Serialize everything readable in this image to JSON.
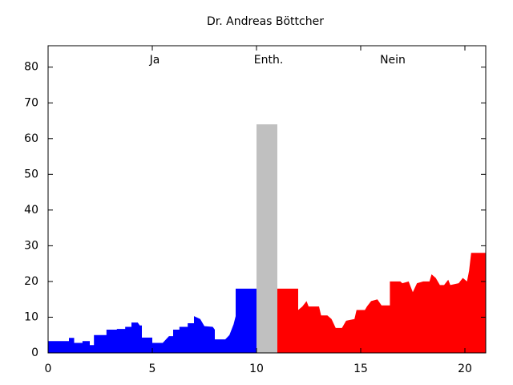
{
  "chart_data": {
    "type": "area",
    "title": "Dr. Andreas Böttcher",
    "annotations": [
      "Ja",
      "Enth.",
      "Nein"
    ],
    "xlim": [
      0,
      21
    ],
    "xticks": [
      0,
      5,
      10,
      15,
      20
    ],
    "ylim": [
      0,
      86
    ],
    "yticks": [
      0,
      10,
      20,
      30,
      40,
      50,
      60,
      70,
      80
    ],
    "grid": false,
    "series": [
      {
        "color": "#0000ff",
        "x": [
          0,
          1,
          1,
          1.25,
          1.25,
          1.65,
          1.65,
          2,
          2,
          2.2,
          2.2,
          2.8,
          2.8,
          3.3,
          3.3,
          3.7,
          3.7,
          4,
          4,
          4.3,
          4.4,
          4.5,
          4.5,
          5,
          5,
          5.5,
          5.8,
          6,
          6,
          6.3,
          6.3,
          6.7,
          6.7,
          7,
          7,
          7.3,
          7.5,
          7.9,
          8,
          8,
          8.5,
          8.7,
          8.9,
          9,
          9,
          10
        ],
        "values": [
          3.3,
          3.3,
          4.2,
          4.2,
          2.8,
          2.8,
          3.3,
          3.3,
          2.2,
          2.2,
          5,
          5,
          6.5,
          6.5,
          6.7,
          6.7,
          7.3,
          7.3,
          8.5,
          8.5,
          7.7,
          7.7,
          4.3,
          4.3,
          2.8,
          2.8,
          4.7,
          4.7,
          6.5,
          6.5,
          7.3,
          7.3,
          8.3,
          8.3,
          10.3,
          9.5,
          7.5,
          7.3,
          6.5,
          3.8,
          3.8,
          5,
          8,
          10.3,
          18,
          18
        ]
      },
      {
        "color": "#c0c0c0",
        "x": [
          10,
          11
        ],
        "values": [
          64,
          64
        ]
      },
      {
        "color": "#ff0000",
        "x": [
          11,
          12,
          12,
          12.2,
          12.4,
          12.5,
          13,
          13.1,
          13.4,
          13.6,
          13.8,
          14.1,
          14.3,
          14.7,
          14.8,
          15.2,
          15.3,
          15.5,
          15.8,
          16,
          16.4,
          16.4,
          16.9,
          17,
          17.3,
          17.5,
          17.7,
          18,
          18.3,
          18.4,
          18.6,
          18.8,
          19,
          19.2,
          19.3,
          19.7,
          19.9,
          20.1,
          20.2,
          20.3,
          21
        ],
        "values": [
          18,
          18,
          12,
          13,
          14.5,
          13,
          13,
          10.5,
          10.5,
          9.5,
          7,
          7,
          9,
          9.5,
          12,
          12,
          13,
          14.5,
          15,
          13.3,
          13.3,
          20,
          20,
          19.5,
          20,
          17,
          19.5,
          20,
          20,
          22,
          21,
          19,
          19,
          20.5,
          19,
          19.5,
          21,
          20,
          23,
          28,
          28
        ]
      }
    ]
  }
}
